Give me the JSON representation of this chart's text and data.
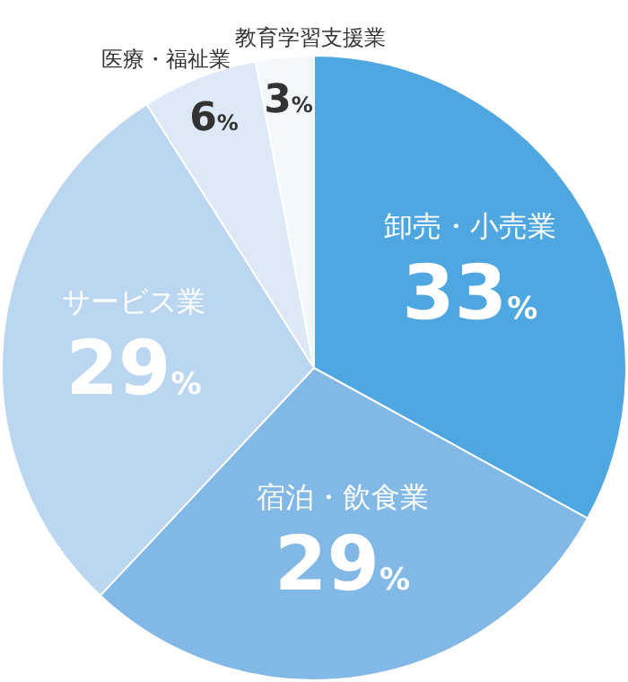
{
  "chart_data": {
    "type": "pie",
    "categories": [
      "卸売・小売業",
      "宿泊・飲食業",
      "サービス業",
      "医療・福祉業",
      "教育学習支援業"
    ],
    "values": [
      33,
      29,
      29,
      6,
      3
    ],
    "colors": [
      "#4ea7e0",
      "#82b8e6",
      "#bad6f1",
      "#dde9f7",
      "#f4f8fd"
    ],
    "value_labels": [
      "33%",
      "29%",
      "29%",
      "6%",
      "3%"
    ]
  }
}
